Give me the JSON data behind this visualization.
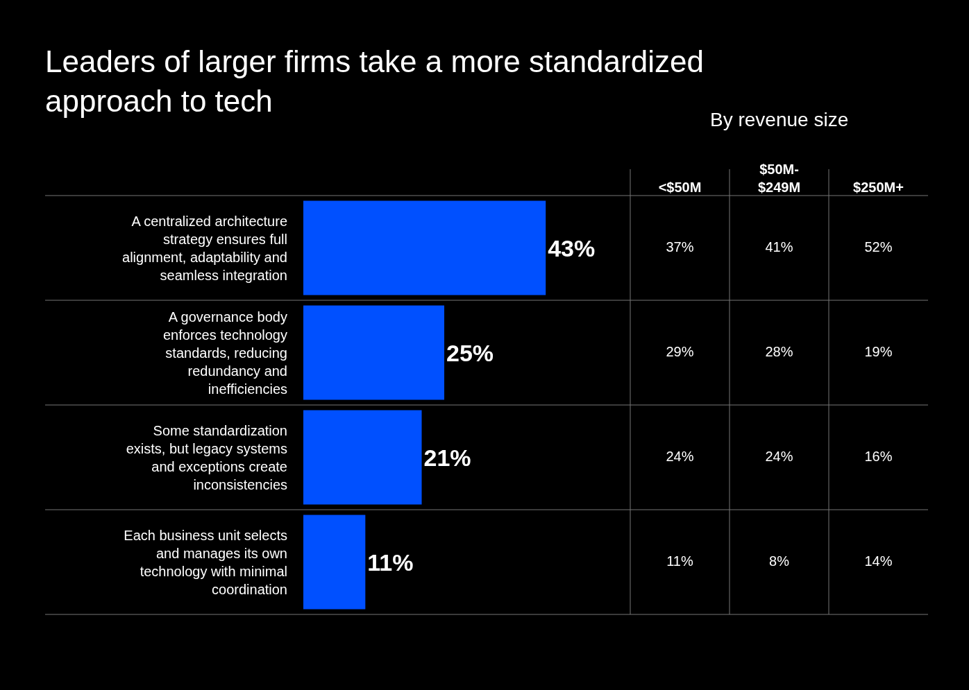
{
  "chart_data": [
    {
      "type": "bar",
      "orientation": "horizontal",
      "title": "Leaders of larger firms take a more standardized\napproach to tech",
      "categories": [
        "A centralized architecture\nstrategy ensures full\nalignment, adaptability and\nseamless integration",
        "A governance body\nenforces technology\nstandards, reducing\nredundancy and\ninefficiencies",
        "Some standardization\nexists, but legacy systems\nand exceptions create\ninconsistencies",
        "Each business unit selects\nand manages its own\ntechnology with minimal\ncoordination"
      ],
      "values": [
        43,
        25,
        21,
        11
      ],
      "value_labels": [
        "43%",
        "25%",
        "21%",
        "11%"
      ],
      "color": "#0050ff",
      "xlim": [
        0,
        58
      ],
      "tick_labels": "y",
      "grid": false
    },
    {
      "type": "heatmap",
      "title": "By revenue size",
      "categories": [
        "<$50M",
        "$50M-\n$249M",
        "$250M+"
      ],
      "y_categories": [
        null,
        null,
        null,
        null
      ],
      "cells": [
        [
          37,
          41,
          52
        ],
        [
          29,
          28,
          19
        ],
        [
          24,
          24,
          16
        ],
        [
          11,
          8,
          14
        ]
      ],
      "cell_labels": [
        [
          "37%",
          "41%",
          "52%"
        ],
        [
          "29%",
          "28%",
          "19%"
        ],
        [
          "24%",
          "24%",
          "16%"
        ],
        [
          "11%",
          "8%",
          "14%"
        ]
      ],
      "color": "#000000",
      "grid": true,
      "tick_labels": "x"
    }
  ]
}
